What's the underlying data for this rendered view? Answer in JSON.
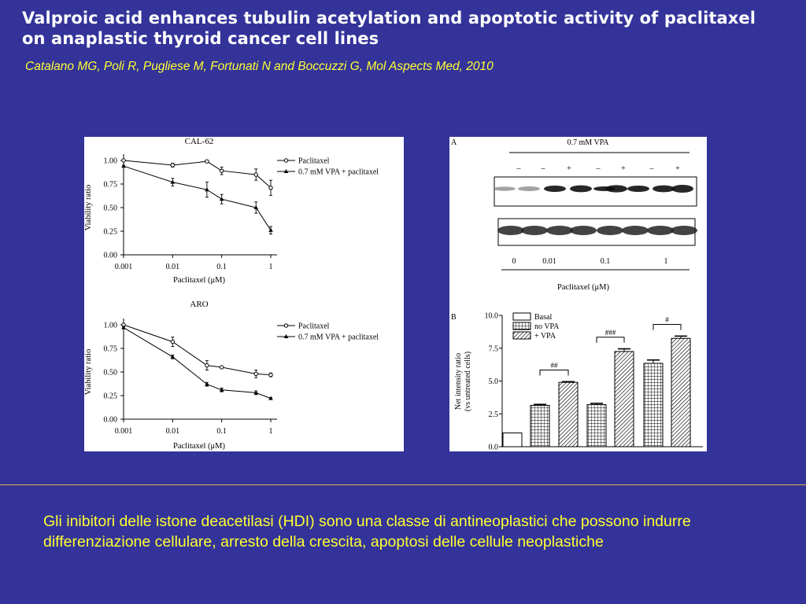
{
  "slide": {
    "title": "Valproic acid enhances tubulin acetylation and apoptotic activity of paclitaxel on anaplastic thyroid cancer cell lines",
    "citation": "Catalano MG, Poli R, Pugliese M, Fortunati N and Boccuzzi G, Mol Aspects Med, 2010",
    "body_text": "Gli inibitori delle istone deacetilasi (HDI) sono una classe di antineoplastici che possono indurre differenziazione cellulare, arresto della crescita, apoptosi delle cellule neoplastiche",
    "background_color": "#33339a",
    "title_color": "#ffffff",
    "accent_color": "#ffff33",
    "divider_color": "#d4b240"
  },
  "chart_data": [
    {
      "type": "line",
      "title": "CAL-62",
      "xlabel": "Paclitaxel (μM)",
      "ylabel": "Viability ratio",
      "x_scale": "log",
      "x": [
        0.001,
        0.01,
        0.05,
        0.1,
        0.5,
        1
      ],
      "x_ticks": [
        "0.001",
        "0.01",
        "0.1",
        "1"
      ],
      "y_ticks": [
        "0.00",
        "0.25",
        "0.50",
        "0.75",
        "1.00"
      ],
      "ylim": [
        0,
        1
      ],
      "series": [
        {
          "name": "Paclitaxel",
          "marker": "circle",
          "values": [
            1.0,
            0.95,
            0.99,
            0.89,
            0.85,
            0.71
          ],
          "errors": [
            0.01,
            0.02,
            0.01,
            0.04,
            0.06,
            0.08
          ]
        },
        {
          "name": "0.7 mM VPA + paclitaxel",
          "marker": "triangle",
          "values": [
            0.94,
            0.77,
            0.69,
            0.59,
            0.5,
            0.26
          ],
          "errors": [
            0.01,
            0.04,
            0.08,
            0.05,
            0.06,
            0.04
          ]
        }
      ]
    },
    {
      "type": "line",
      "title": "ARO",
      "xlabel": "Paclitaxel (μM)",
      "ylabel": "Viability ratio",
      "x_scale": "log",
      "x": [
        0.001,
        0.01,
        0.05,
        0.1,
        0.5,
        1
      ],
      "x_ticks": [
        "0.001",
        "0.01",
        "0.1",
        "1"
      ],
      "y_ticks": [
        "0.00",
        "0.25",
        "0.50",
        "0.75",
        "1.00"
      ],
      "ylim": [
        0,
        1
      ],
      "series": [
        {
          "name": "Paclitaxel",
          "marker": "circle",
          "values": [
            1.0,
            0.82,
            0.57,
            0.55,
            0.48,
            0.47
          ],
          "errors": [
            0.01,
            0.05,
            0.05,
            0.01,
            0.04,
            0.02
          ]
        },
        {
          "name": "0.7 mM VPA + paclitaxel",
          "marker": "triangle",
          "values": [
            0.97,
            0.66,
            0.37,
            0.31,
            0.28,
            0.22
          ],
          "errors": [
            0.01,
            0.02,
            0.02,
            0.02,
            0.02,
            0.01
          ]
        }
      ]
    },
    {
      "type": "bar",
      "panel_label": "B",
      "ylabel": "Net intensity ratio (vs untreated cells)",
      "ylim": [
        0,
        10
      ],
      "y_ticks": [
        "0.0",
        "2.5",
        "5.0",
        "7.5",
        "10.0"
      ],
      "legend": [
        "Basal",
        "no VPA",
        "+ VPA"
      ],
      "bars": [
        {
          "group": "Basal",
          "value": 1.05,
          "error": 0
        },
        {
          "group": "no VPA",
          "value": 3.15,
          "error": 0.12
        },
        {
          "group": "+ VPA",
          "value": 4.9,
          "error": 0.1
        },
        {
          "group": "no VPA",
          "value": 3.2,
          "error": 0.15
        },
        {
          "group": "+ VPA",
          "value": 7.25,
          "error": 0.25
        },
        {
          "group": "no VPA",
          "value": 6.35,
          "error": 0.3
        },
        {
          "group": "+ VPA",
          "value": 8.25,
          "error": 0.22
        }
      ],
      "significance": [
        {
          "label": "##",
          "between": [
            1,
            2
          ]
        },
        {
          "label": "###",
          "between": [
            3,
            4
          ]
        },
        {
          "label": "#",
          "between": [
            5,
            6
          ]
        }
      ]
    }
  ],
  "blot": {
    "panel_label": "A",
    "header": "0.7 mM VPA",
    "signs": [
      "–",
      "–",
      "+",
      "–",
      "+",
      "–",
      "+"
    ],
    "concentrations": [
      "0",
      "0.01",
      "0.1",
      "1"
    ],
    "xlabel": "Paclitaxel (μM)"
  }
}
